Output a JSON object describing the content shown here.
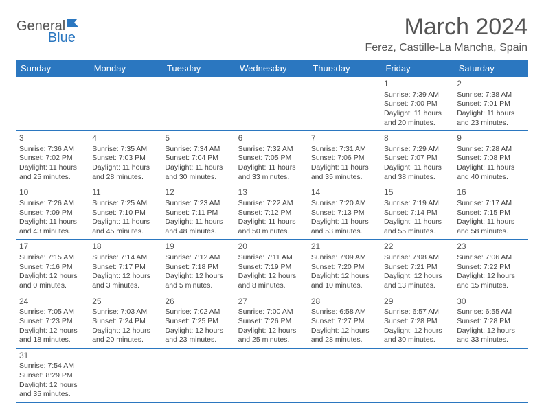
{
  "logo": {
    "text1": "General",
    "text2": "Blue"
  },
  "title": "March 2024",
  "location": "Ferez, Castille-La Mancha, Spain",
  "colors": {
    "headerBg": "#2b77c0",
    "headerText": "#ffffff",
    "border": "#2b77c0",
    "bodyText": "#444444"
  },
  "weekdays": [
    "Sunday",
    "Monday",
    "Tuesday",
    "Wednesday",
    "Thursday",
    "Friday",
    "Saturday"
  ],
  "weeks": [
    [
      null,
      null,
      null,
      null,
      null,
      {
        "n": "1",
        "sr": "Sunrise: 7:39 AM",
        "ss": "Sunset: 7:00 PM",
        "d1": "Daylight: 11 hours",
        "d2": "and 20 minutes."
      },
      {
        "n": "2",
        "sr": "Sunrise: 7:38 AM",
        "ss": "Sunset: 7:01 PM",
        "d1": "Daylight: 11 hours",
        "d2": "and 23 minutes."
      }
    ],
    [
      {
        "n": "3",
        "sr": "Sunrise: 7:36 AM",
        "ss": "Sunset: 7:02 PM",
        "d1": "Daylight: 11 hours",
        "d2": "and 25 minutes."
      },
      {
        "n": "4",
        "sr": "Sunrise: 7:35 AM",
        "ss": "Sunset: 7:03 PM",
        "d1": "Daylight: 11 hours",
        "d2": "and 28 minutes."
      },
      {
        "n": "5",
        "sr": "Sunrise: 7:34 AM",
        "ss": "Sunset: 7:04 PM",
        "d1": "Daylight: 11 hours",
        "d2": "and 30 minutes."
      },
      {
        "n": "6",
        "sr": "Sunrise: 7:32 AM",
        "ss": "Sunset: 7:05 PM",
        "d1": "Daylight: 11 hours",
        "d2": "and 33 minutes."
      },
      {
        "n": "7",
        "sr": "Sunrise: 7:31 AM",
        "ss": "Sunset: 7:06 PM",
        "d1": "Daylight: 11 hours",
        "d2": "and 35 minutes."
      },
      {
        "n": "8",
        "sr": "Sunrise: 7:29 AM",
        "ss": "Sunset: 7:07 PM",
        "d1": "Daylight: 11 hours",
        "d2": "and 38 minutes."
      },
      {
        "n": "9",
        "sr": "Sunrise: 7:28 AM",
        "ss": "Sunset: 7:08 PM",
        "d1": "Daylight: 11 hours",
        "d2": "and 40 minutes."
      }
    ],
    [
      {
        "n": "10",
        "sr": "Sunrise: 7:26 AM",
        "ss": "Sunset: 7:09 PM",
        "d1": "Daylight: 11 hours",
        "d2": "and 43 minutes."
      },
      {
        "n": "11",
        "sr": "Sunrise: 7:25 AM",
        "ss": "Sunset: 7:10 PM",
        "d1": "Daylight: 11 hours",
        "d2": "and 45 minutes."
      },
      {
        "n": "12",
        "sr": "Sunrise: 7:23 AM",
        "ss": "Sunset: 7:11 PM",
        "d1": "Daylight: 11 hours",
        "d2": "and 48 minutes."
      },
      {
        "n": "13",
        "sr": "Sunrise: 7:22 AM",
        "ss": "Sunset: 7:12 PM",
        "d1": "Daylight: 11 hours",
        "d2": "and 50 minutes."
      },
      {
        "n": "14",
        "sr": "Sunrise: 7:20 AM",
        "ss": "Sunset: 7:13 PM",
        "d1": "Daylight: 11 hours",
        "d2": "and 53 minutes."
      },
      {
        "n": "15",
        "sr": "Sunrise: 7:19 AM",
        "ss": "Sunset: 7:14 PM",
        "d1": "Daylight: 11 hours",
        "d2": "and 55 minutes."
      },
      {
        "n": "16",
        "sr": "Sunrise: 7:17 AM",
        "ss": "Sunset: 7:15 PM",
        "d1": "Daylight: 11 hours",
        "d2": "and 58 minutes."
      }
    ],
    [
      {
        "n": "17",
        "sr": "Sunrise: 7:15 AM",
        "ss": "Sunset: 7:16 PM",
        "d1": "Daylight: 12 hours",
        "d2": "and 0 minutes."
      },
      {
        "n": "18",
        "sr": "Sunrise: 7:14 AM",
        "ss": "Sunset: 7:17 PM",
        "d1": "Daylight: 12 hours",
        "d2": "and 3 minutes."
      },
      {
        "n": "19",
        "sr": "Sunrise: 7:12 AM",
        "ss": "Sunset: 7:18 PM",
        "d1": "Daylight: 12 hours",
        "d2": "and 5 minutes."
      },
      {
        "n": "20",
        "sr": "Sunrise: 7:11 AM",
        "ss": "Sunset: 7:19 PM",
        "d1": "Daylight: 12 hours",
        "d2": "and 8 minutes."
      },
      {
        "n": "21",
        "sr": "Sunrise: 7:09 AM",
        "ss": "Sunset: 7:20 PM",
        "d1": "Daylight: 12 hours",
        "d2": "and 10 minutes."
      },
      {
        "n": "22",
        "sr": "Sunrise: 7:08 AM",
        "ss": "Sunset: 7:21 PM",
        "d1": "Daylight: 12 hours",
        "d2": "and 13 minutes."
      },
      {
        "n": "23",
        "sr": "Sunrise: 7:06 AM",
        "ss": "Sunset: 7:22 PM",
        "d1": "Daylight: 12 hours",
        "d2": "and 15 minutes."
      }
    ],
    [
      {
        "n": "24",
        "sr": "Sunrise: 7:05 AM",
        "ss": "Sunset: 7:23 PM",
        "d1": "Daylight: 12 hours",
        "d2": "and 18 minutes."
      },
      {
        "n": "25",
        "sr": "Sunrise: 7:03 AM",
        "ss": "Sunset: 7:24 PM",
        "d1": "Daylight: 12 hours",
        "d2": "and 20 minutes."
      },
      {
        "n": "26",
        "sr": "Sunrise: 7:02 AM",
        "ss": "Sunset: 7:25 PM",
        "d1": "Daylight: 12 hours",
        "d2": "and 23 minutes."
      },
      {
        "n": "27",
        "sr": "Sunrise: 7:00 AM",
        "ss": "Sunset: 7:26 PM",
        "d1": "Daylight: 12 hours",
        "d2": "and 25 minutes."
      },
      {
        "n": "28",
        "sr": "Sunrise: 6:58 AM",
        "ss": "Sunset: 7:27 PM",
        "d1": "Daylight: 12 hours",
        "d2": "and 28 minutes."
      },
      {
        "n": "29",
        "sr": "Sunrise: 6:57 AM",
        "ss": "Sunset: 7:28 PM",
        "d1": "Daylight: 12 hours",
        "d2": "and 30 minutes."
      },
      {
        "n": "30",
        "sr": "Sunrise: 6:55 AM",
        "ss": "Sunset: 7:28 PM",
        "d1": "Daylight: 12 hours",
        "d2": "and 33 minutes."
      }
    ],
    [
      {
        "n": "31",
        "sr": "Sunrise: 7:54 AM",
        "ss": "Sunset: 8:29 PM",
        "d1": "Daylight: 12 hours",
        "d2": "and 35 minutes."
      },
      null,
      null,
      null,
      null,
      null,
      null
    ]
  ]
}
